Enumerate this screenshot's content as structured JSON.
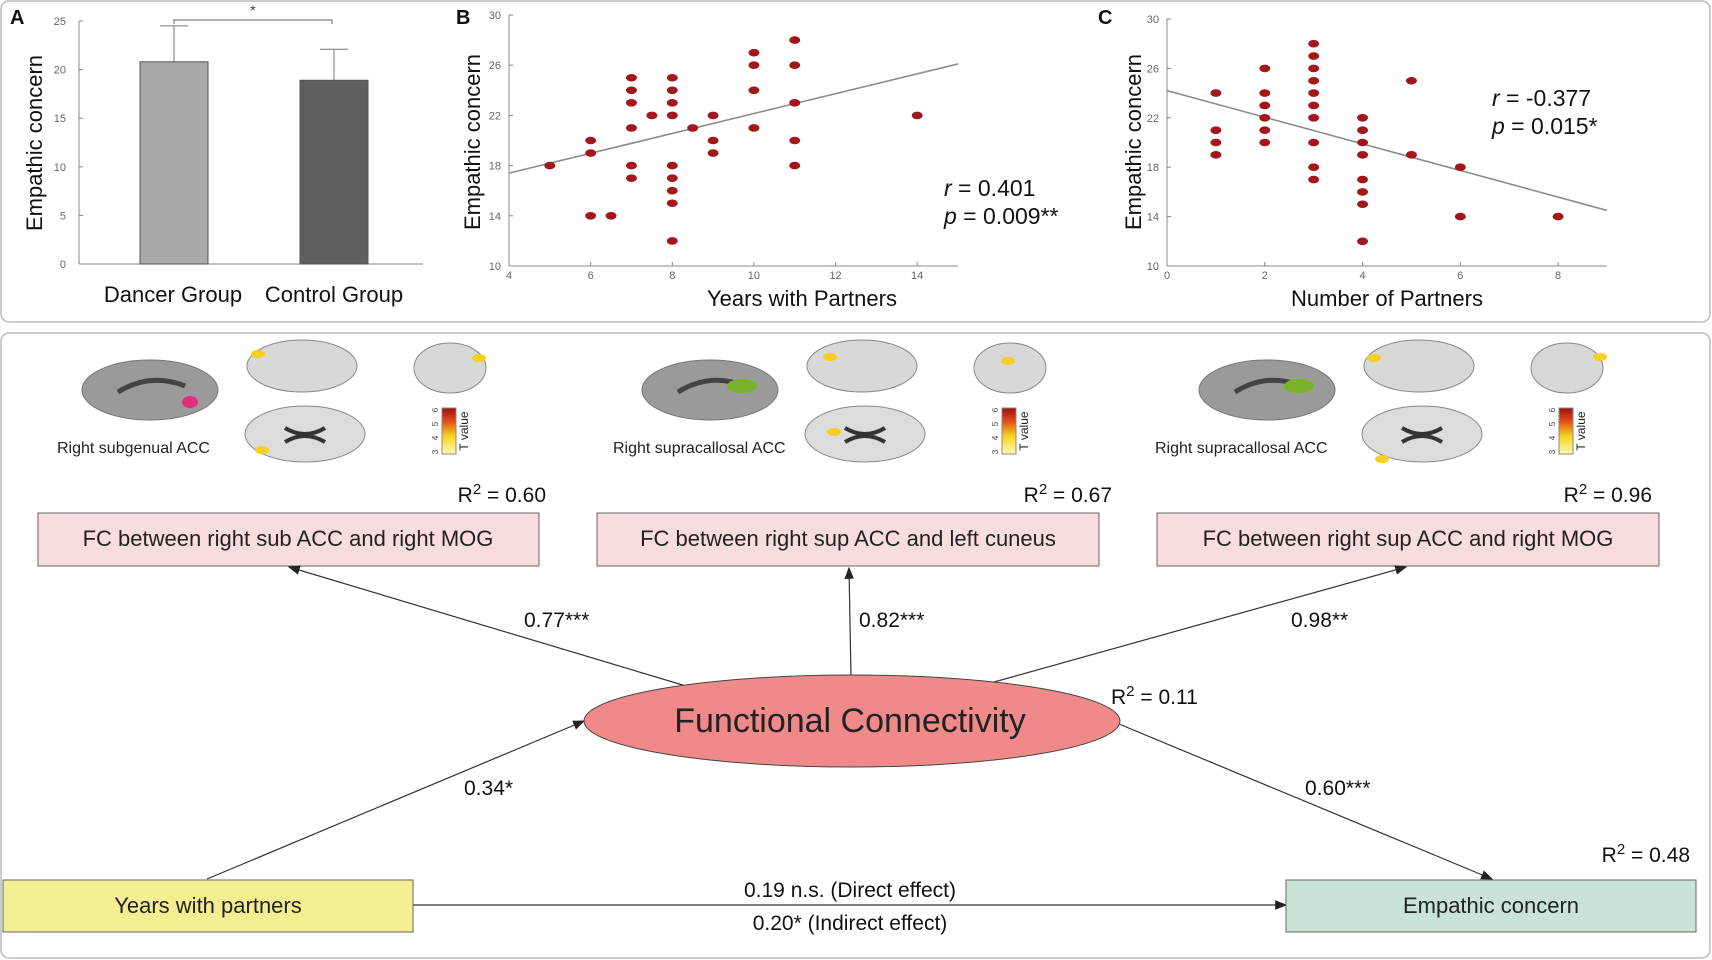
{
  "colors": {
    "point": "#a3161c",
    "fit_line": "#8c8c8c",
    "dancer_bar": "#a9a9a9",
    "control_bar": "#5e5e5e",
    "fc_box": "#f9dcdd",
    "ellipse": "#f08a8a",
    "years_box": "#f3ef90",
    "empathic_box": "#c9e4d6"
  },
  "chart_data": [
    {
      "panel": "A",
      "type": "bar",
      "categories": [
        "Dancer Group",
        "Control Group"
      ],
      "values": [
        20.8,
        18.9
      ],
      "error_upper": [
        24.5,
        22.1
      ],
      "ylabel": "Empathic concern",
      "ylim": [
        0,
        25
      ],
      "yticks": [
        "0",
        "5",
        "10",
        "15",
        "20",
        "25"
      ],
      "significance": "*"
    },
    {
      "panel": "B",
      "type": "scatter",
      "xlabel": "Years with Partners",
      "ylabel": "Empathic concern",
      "xlim": [
        4,
        15
      ],
      "ylim": [
        10,
        30
      ],
      "xticks": [
        "4",
        "6",
        "8",
        "10",
        "12",
        "14"
      ],
      "yticks": [
        "10",
        "14",
        "18",
        "22",
        "26",
        "30"
      ],
      "points": [
        [
          5,
          18
        ],
        [
          6,
          20
        ],
        [
          6,
          19
        ],
        [
          6,
          14
        ],
        [
          6.5,
          14
        ],
        [
          7,
          25
        ],
        [
          7,
          24
        ],
        [
          7,
          23
        ],
        [
          7,
          21
        ],
        [
          7,
          18
        ],
        [
          7,
          17
        ],
        [
          7.5,
          22
        ],
        [
          8,
          25
        ],
        [
          8,
          24
        ],
        [
          8,
          23
        ],
        [
          8,
          22
        ],
        [
          8,
          18
        ],
        [
          8,
          17
        ],
        [
          8,
          16
        ],
        [
          8,
          15
        ],
        [
          8,
          12
        ],
        [
          8.5,
          21
        ],
        [
          9,
          22
        ],
        [
          9,
          20
        ],
        [
          9,
          19
        ],
        [
          10,
          27
        ],
        [
          10,
          26
        ],
        [
          10,
          24
        ],
        [
          10,
          21
        ],
        [
          11,
          28
        ],
        [
          11,
          26
        ],
        [
          11,
          23
        ],
        [
          11,
          20
        ],
        [
          11,
          18
        ],
        [
          14,
          22
        ]
      ],
      "fit_line": [
        [
          4,
          17.4
        ],
        [
          15,
          26.1
        ]
      ],
      "r_label": "r",
      "r_value": " = 0.401",
      "p_label": "p",
      "p_value": " = 0.009**"
    },
    {
      "panel": "C",
      "type": "scatter",
      "xlabel": "Number of Partners",
      "ylabel": "Empathic concern",
      "xlim": [
        0,
        9
      ],
      "ylim": [
        10,
        30
      ],
      "xticks": [
        "0",
        "2",
        "4",
        "6",
        "8"
      ],
      "yticks": [
        "10",
        "14",
        "18",
        "22",
        "26",
        "30"
      ],
      "points": [
        [
          1,
          24
        ],
        [
          1,
          21
        ],
        [
          1,
          20
        ],
        [
          1,
          19
        ],
        [
          2,
          26
        ],
        [
          2,
          24
        ],
        [
          2,
          23
        ],
        [
          2,
          22
        ],
        [
          2,
          21
        ],
        [
          2,
          20
        ],
        [
          3,
          28
        ],
        [
          3,
          27
        ],
        [
          3,
          26
        ],
        [
          3,
          25
        ],
        [
          3,
          24
        ],
        [
          3,
          23
        ],
        [
          3,
          22
        ],
        [
          3,
          20
        ],
        [
          3,
          18
        ],
        [
          3,
          17
        ],
        [
          4,
          22
        ],
        [
          4,
          21
        ],
        [
          4,
          20
        ],
        [
          4,
          19
        ],
        [
          4,
          17
        ],
        [
          4,
          16
        ],
        [
          4,
          15
        ],
        [
          4,
          12
        ],
        [
          5,
          25
        ],
        [
          5,
          19
        ],
        [
          6,
          18
        ],
        [
          6,
          14
        ],
        [
          8,
          14
        ]
      ],
      "fit_line": [
        [
          0,
          24.2
        ],
        [
          9,
          14.5
        ]
      ],
      "r_label": "r",
      "r_value": " = -0.377",
      "p_label": "p",
      "p_value": " = 0.015*"
    }
  ],
  "model": {
    "regions": [
      {
        "label": "Right subgenual ACC",
        "seed_color": "#e0307a",
        "colorbar_title": "T value",
        "colorbar_ticks": [
          "3",
          "4",
          "5",
          "6"
        ]
      },
      {
        "label": "Right supracallosal ACC",
        "seed_color": "#7ab32a",
        "colorbar_title": "T value",
        "colorbar_ticks": [
          "3",
          "4",
          "5",
          "6"
        ]
      },
      {
        "label": "Right supracallosal ACC",
        "seed_color": "#7ab32a",
        "colorbar_title": "T value",
        "colorbar_ticks": [
          "3",
          "4",
          "5",
          "6"
        ]
      }
    ],
    "fc_boxes": [
      {
        "label": "FC between right sub ACC and right MOG",
        "r2_prefix": "R",
        "r2_sup": "2",
        "r2_value": " = 0.60",
        "path": "0.77***"
      },
      {
        "label": "FC between right sup ACC and left cuneus",
        "r2_prefix": "R",
        "r2_sup": "2",
        "r2_value": " = 0.67",
        "path": "0.82***"
      },
      {
        "label": "FC between right sup ACC and right MOG",
        "r2_prefix": "R",
        "r2_sup": "2",
        "r2_value": " = 0.96",
        "path": "0.98**"
      }
    ],
    "mediator": {
      "label": "Functional Connectivity",
      "r2_prefix": "R",
      "r2_sup": "2",
      "r2_value": " = 0.11"
    },
    "predictor": {
      "label": "Years with partners",
      "path": "0.34*"
    },
    "outcome": {
      "label": "Empathic concern",
      "r2_prefix": "R",
      "r2_sup": "2",
      "r2_value": " = 0.48",
      "path": "0.60***"
    },
    "direct_effect": "0.19 n.s. (Direct effect)",
    "indirect_effect": "0.20* (Indirect effect)"
  }
}
